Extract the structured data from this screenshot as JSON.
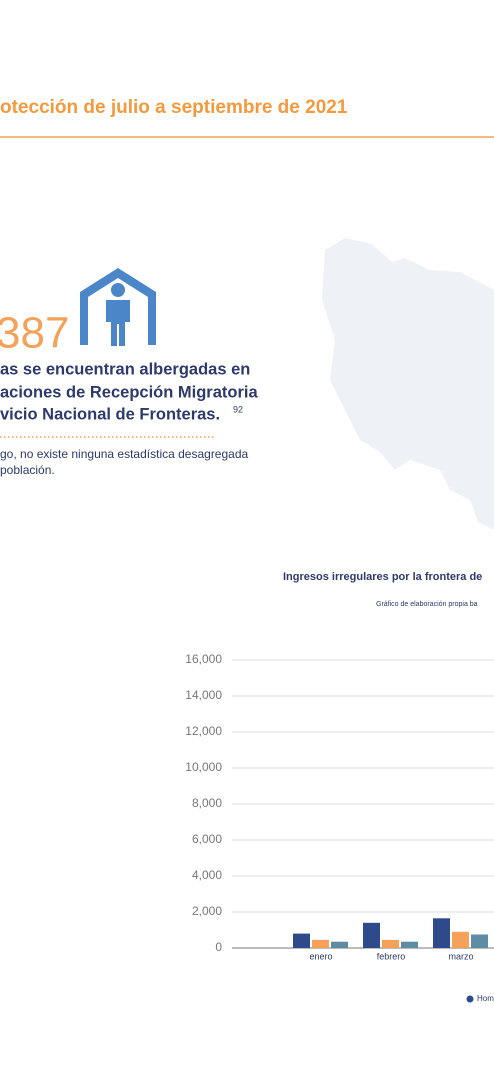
{
  "header": {
    "title": "otección de julio a septiembre de 2021"
  },
  "stat": {
    "number": "387",
    "lines": [
      "as se encuentran albergadas en",
      "aciones de Recepción Migratoria",
      "vicio Nacional de Fronteras."
    ],
    "footnote": "92",
    "note": [
      "go, no existe ninguna estadística desagregada",
      "población."
    ]
  },
  "chart_data": {
    "type": "bar",
    "title": "Ingresos irregulares por la frontera de",
    "subtitle": "Gráfico de elaboración propia ba",
    "categories": [
      "enero",
      "febrero",
      "marzo"
    ],
    "series": [
      {
        "name": "Hom",
        "color": "#2f4a8a",
        "values": [
          800,
          1400,
          1650
        ]
      },
      {
        "color": "#f4a259",
        "values": [
          450,
          450,
          900
        ]
      },
      {
        "color": "#5f8ba3",
        "values": [
          350,
          350,
          750
        ]
      }
    ],
    "ylim": [
      0,
      16000
    ],
    "yticks": [
      0,
      {
        "value": 2000,
        "label": "2,000"
      },
      {
        "value": 4000,
        "label": "4,000"
      },
      {
        "value": 6000,
        "label": "6,000"
      },
      {
        "value": 8000,
        "label": "8,000"
      },
      {
        "value": 10000,
        "label": "10,000"
      },
      {
        "value": 12000,
        "label": "12,000"
      },
      {
        "value": 14000,
        "label": "14,000"
      },
      {
        "value": 16000,
        "label": "16,000"
      }
    ],
    "grid": true
  }
}
